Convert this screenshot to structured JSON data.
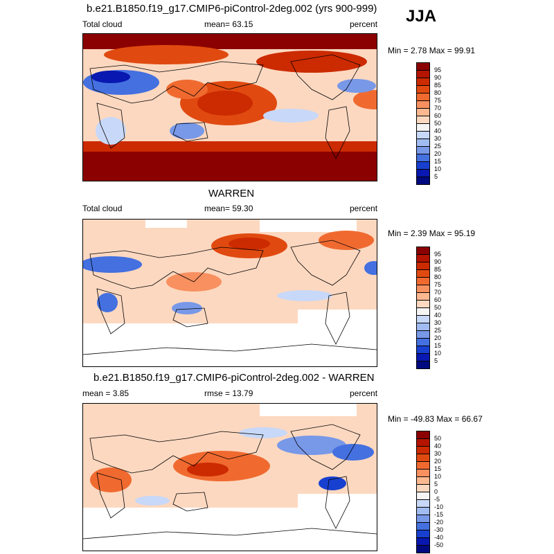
{
  "season": "JJA",
  "panels": [
    {
      "title": "b.e21.B1850.f19_g17.CMIP6-piControl-2deg.002 (yrs 900-999)",
      "left_label": "Total cloud",
      "center_label": "mean=  63.15",
      "right_label": "percent",
      "minmax": "Min =   2.78 Max =  99.91",
      "colorbar_labels": [
        "95",
        "90",
        "85",
        "80",
        "75",
        "70",
        "60",
        "50",
        "40",
        "30",
        "25",
        "20",
        "15",
        "10",
        "5"
      ]
    },
    {
      "title": "WARREN",
      "left_label": "Total cloud",
      "center_label": "mean=  59.30",
      "right_label": "percent",
      "minmax": "Min =   2.39 Max =  95.19",
      "colorbar_labels": [
        "95",
        "90",
        "85",
        "80",
        "75",
        "70",
        "60",
        "50",
        "40",
        "30",
        "25",
        "20",
        "15",
        "10",
        "5"
      ]
    },
    {
      "title": "b.e21.B1850.f19_g17.CMIP6-piControl-2deg.002 - WARREN",
      "left_label": "mean =   3.85",
      "center_label": "rmse =  13.79",
      "right_label": "percent",
      "minmax": "Min = -49.83 Max =  66.67",
      "colorbar_labels": [
        "50",
        "40",
        "30",
        "20",
        "15",
        "10",
        "5",
        "0",
        "-5",
        "-10",
        "-15",
        "-20",
        "-30",
        "-40",
        "-50"
      ]
    }
  ],
  "colors": {
    "colorbar": [
      "#8b0000",
      "#b41400",
      "#cc2a00",
      "#e04a10",
      "#f06a30",
      "#f89060",
      "#fcb890",
      "#fcd8c0",
      "#f4f4f4",
      "#c8d8f8",
      "#a0bcf0",
      "#7898e8",
      "#4470e0",
      "#1840d0",
      "#0818b0",
      "#000a80"
    ],
    "land_outline": "#000000"
  }
}
